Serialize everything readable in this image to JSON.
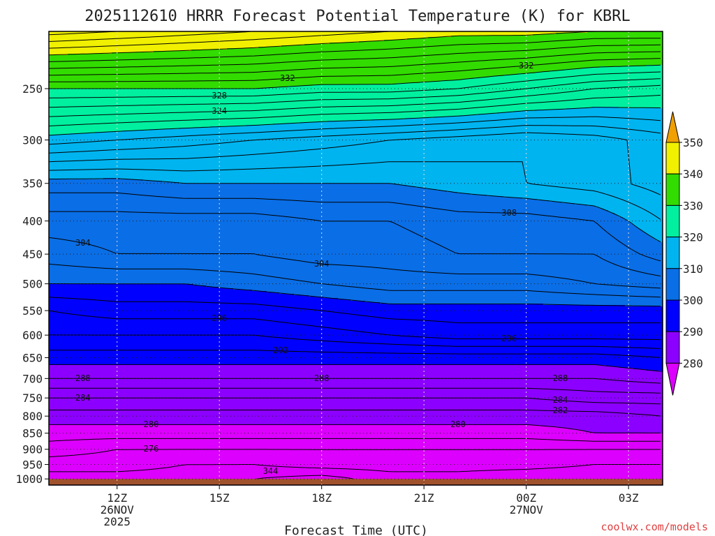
{
  "chart_data": {
    "type": "contour",
    "title": "2025112610 HRRR Forecast Potential Temperature (K) for KBRL",
    "xlabel": "Forecast Time (UTC)",
    "ylabel": "",
    "units": "K",
    "y_scale": "log",
    "y_ticks": [
      250,
      300,
      350,
      400,
      450,
      500,
      550,
      600,
      650,
      700,
      750,
      800,
      850,
      900,
      950,
      1000
    ],
    "x_ticks": [
      {
        "hour": 12,
        "lines": [
          "12Z",
          "26NOV",
          "2025"
        ]
      },
      {
        "hour": 15,
        "lines": [
          "15Z"
        ]
      },
      {
        "hour": 18,
        "lines": [
          "18Z"
        ]
      },
      {
        "hour": 21,
        "lines": [
          "21Z"
        ]
      },
      {
        "hour": 24,
        "lines": [
          "00Z",
          "27NOV"
        ]
      },
      {
        "hour": 27,
        "lines": [
          "03Z"
        ]
      }
    ],
    "xlim_hours": [
      10,
      28
    ],
    "ylim_hPa": [
      1022,
      204
    ],
    "colorbar": {
      "labels": [
        "280",
        "290",
        "300",
        "310",
        "320",
        "330",
        "340",
        "350"
      ],
      "colors": [
        "#dc00ff",
        "#8c00ff",
        "#0000ff",
        "#0a6ee6",
        "#00b4f0",
        "#00f0a0",
        "#32dc00",
        "#f0f000",
        "#f0a000"
      ]
    },
    "hours": [
      10,
      12,
      14,
      16,
      18,
      20,
      22,
      24,
      26,
      28
    ],
    "pressure_levels": [
      1000,
      950,
      900,
      850,
      800,
      750,
      700,
      650,
      600,
      550,
      500,
      450,
      400,
      350,
      300,
      250,
      204
    ],
    "theta_K": [
      [
        273,
        273,
        273,
        272,
        271,
        273,
        273,
        272,
        272,
        272
      ],
      [
        275,
        275,
        274,
        274,
        275,
        275,
        275,
        275,
        274,
        274
      ],
      [
        277,
        276,
        276,
        276,
        276,
        276,
        276,
        276,
        276,
        276
      ],
      [
        279,
        279,
        279,
        279,
        279,
        279,
        279,
        279,
        280,
        280
      ],
      [
        281,
        281,
        281,
        281,
        281,
        281,
        281,
        281,
        281,
        282
      ],
      [
        284,
        284,
        284,
        284,
        284,
        284,
        284,
        284,
        285,
        285
      ],
      [
        288,
        288,
        288,
        288,
        288,
        288,
        288,
        288,
        288,
        289
      ],
      [
        291,
        291,
        291,
        291,
        291,
        291,
        291,
        291,
        291,
        292
      ],
      [
        294,
        294,
        294,
        294,
        295,
        296,
        297,
        297,
        297,
        297
      ],
      [
        296,
        297,
        297,
        297,
        298,
        299,
        299,
        299,
        299,
        299
      ],
      [
        300,
        300,
        300,
        301,
        302,
        303,
        303,
        303,
        304,
        305
      ],
      [
        303,
        304,
        304,
        304,
        305,
        305,
        306,
        306,
        306,
        309
      ],
      [
        305,
        305,
        305,
        305,
        306,
        306,
        307,
        307,
        308,
        312
      ],
      [
        309,
        309,
        310,
        310,
        310,
        310,
        311,
        312,
        313,
        315
      ],
      [
        319,
        318,
        317,
        316,
        315,
        314,
        313,
        312,
        313,
        315
      ],
      [
        330,
        330,
        330,
        330,
        329,
        329,
        328,
        326,
        324,
        323
      ],
      [
        347,
        346,
        345,
        344,
        343,
        342,
        341,
        341,
        340,
        340
      ]
    ],
    "contour_labels": [
      "344",
      "332",
      "332",
      "328",
      "324",
      "304",
      "308",
      "304",
      "296",
      "296",
      "292",
      "288",
      "288",
      "288",
      "282",
      "284",
      "284",
      "280",
      "280",
      "276"
    ],
    "missing_color": "#a0522d"
  },
  "watermark": "coolwx.com/models"
}
